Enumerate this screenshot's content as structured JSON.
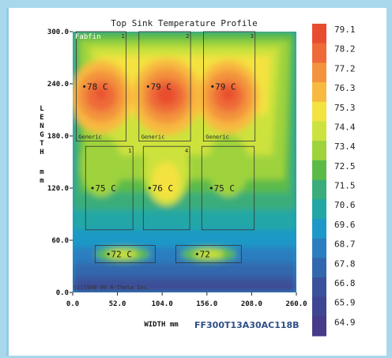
{
  "chart_data": {
    "type": "heatmap",
    "title": "Top Sink Temperature Profile",
    "xlabel": "WIDTH mm",
    "ylabel": "L E N G T H   m m",
    "xlim": [
      0,
      260
    ],
    "ylim": [
      0,
      300
    ],
    "x_ticks": [
      "0.0",
      "52.0",
      "104.0",
      "156.0",
      "208.0",
      "260.0"
    ],
    "y_ticks": [
      "0.0",
      "60.0",
      "120.0",
      "180.0",
      "240.0",
      "300.0"
    ],
    "colorbar": {
      "labels": [
        "79.1",
        "78.2",
        "77.2",
        "76.3",
        "75.3",
        "74.4",
        "73.4",
        "72.5",
        "71.5",
        "70.6",
        "69.6",
        "68.7",
        "67.8",
        "66.8",
        "65.9",
        "64.9"
      ],
      "colors": [
        "#e84d2f",
        "#ee6a38",
        "#f3933e",
        "#f8b941",
        "#f4e241",
        "#cde23e",
        "#9fd33c",
        "#5cbb48",
        "#3aad7a",
        "#22a7a6",
        "#1d99c7",
        "#2b7ec0",
        "#3367ad",
        "#3a529b",
        "#3f4691",
        "#453b88"
      ]
    },
    "components": [
      {
        "label": "Generic",
        "number": "1",
        "temp": "78 C",
        "x": [
          4,
          62
        ],
        "y": [
          174,
          300
        ]
      },
      {
        "label": "Generic",
        "number": "2",
        "temp": "79 C",
        "x": [
          77,
          137
        ],
        "y": [
          174,
          300
        ]
      },
      {
        "label": "Generic",
        "number": "3",
        "temp": "79 C",
        "x": [
          152,
          212
        ],
        "y": [
          174,
          300
        ]
      },
      {
        "label": "",
        "number": "1",
        "temp": "75 C",
        "x": [
          15,
          70
        ],
        "y": [
          72,
          168
        ]
      },
      {
        "label": "",
        "number": "4",
        "temp": "76 C",
        "x": [
          82,
          136
        ],
        "y": [
          72,
          168
        ]
      },
      {
        "label": "",
        "number": "",
        "temp": "75 C",
        "x": [
          150,
          211
        ],
        "y": [
          72,
          168
        ]
      },
      {
        "label": "",
        "number": "",
        "temp": "72 C",
        "x": [
          26,
          96
        ],
        "y": [
          34,
          54
        ]
      },
      {
        "label": "",
        "number": "",
        "temp": "72",
        "x": [
          120,
          196
        ],
        "y": [
          34,
          54
        ]
      }
    ],
    "grid": false,
    "legend_position": "right"
  },
  "brand_text": "Fabfin",
  "copyright": "(c)1998-99 R-Theta Inc.",
  "part_number": "FF300T13A30AC118B"
}
